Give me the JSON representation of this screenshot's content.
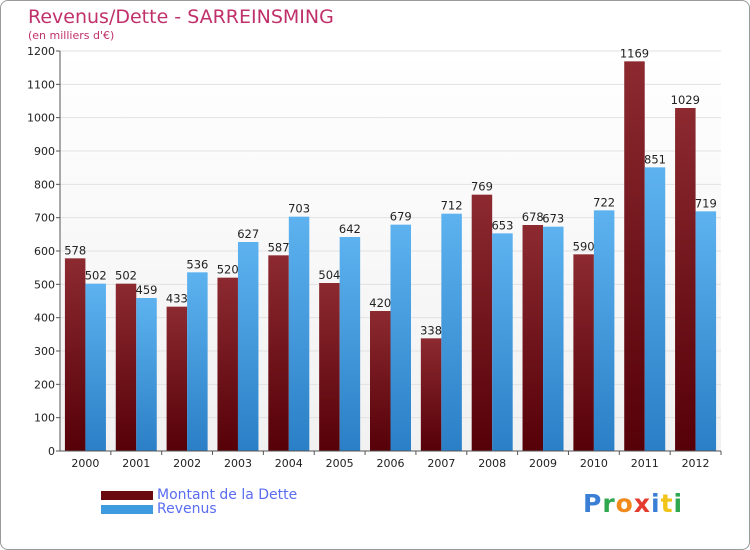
{
  "title": "Revenus/Dette - SARREINSMING",
  "subtitle": "(en milliers d'€)",
  "logo": {
    "letters": [
      "P",
      "r",
      "o",
      "x",
      "i",
      "t",
      "i"
    ],
    "colors": [
      "#3a7fd5",
      "#2fa84f",
      "#f08a1c",
      "#e43b2c",
      "#3a7fd5",
      "#f0c419",
      "#2fa84f"
    ]
  },
  "colors": {
    "dette": "#7a1016",
    "revenus": "#3e9be0"
  },
  "chart_data": {
    "type": "bar",
    "categories": [
      "2000",
      "2001",
      "2002",
      "2003",
      "2004",
      "2005",
      "2006",
      "2007",
      "2008",
      "2009",
      "2010",
      "2011",
      "2012"
    ],
    "series": [
      {
        "name": "Montant de la Dette",
        "values": [
          578,
          502,
          433,
          520,
          587,
          504,
          420,
          338,
          769,
          678,
          590,
          1169,
          1029
        ]
      },
      {
        "name": "Revenus",
        "values": [
          502,
          459,
          536,
          627,
          703,
          642,
          679,
          712,
          653,
          673,
          722,
          851,
          719
        ]
      }
    ],
    "yticks": [
      "0",
      "100",
      "200",
      "300",
      "400",
      "500",
      "600",
      "700",
      "800",
      "900",
      "1000",
      "1100",
      "1200"
    ],
    "ylim": [
      0,
      1200
    ],
    "grid": true,
    "legend": "bottom-left"
  }
}
